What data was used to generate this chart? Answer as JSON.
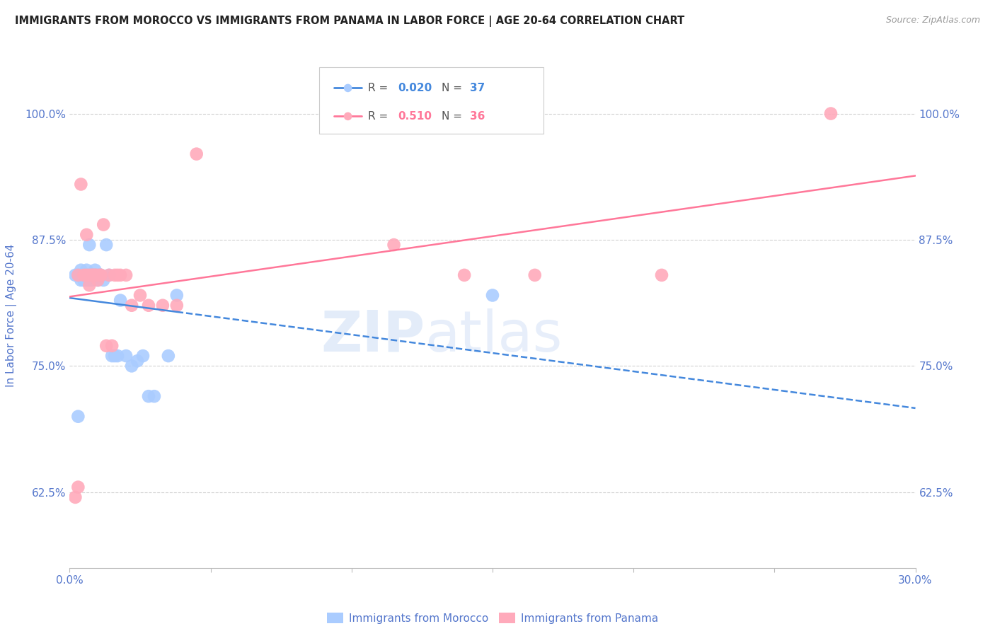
{
  "title": "IMMIGRANTS FROM MOROCCO VS IMMIGRANTS FROM PANAMA IN LABOR FORCE | AGE 20-64 CORRELATION CHART",
  "source": "Source: ZipAtlas.com",
  "ylabel": "In Labor Force | Age 20-64",
  "xlim": [
    0.0,
    0.3
  ],
  "ylim": [
    0.55,
    1.05
  ],
  "xticks": [
    0.0,
    0.05,
    0.1,
    0.15,
    0.2,
    0.25,
    0.3
  ],
  "xticklabels": [
    "0.0%",
    "",
    "",
    "",
    "",
    "",
    "30.0%"
  ],
  "yticks": [
    0.625,
    0.75,
    0.875,
    1.0
  ],
  "yticklabels": [
    "62.5%",
    "75.0%",
    "87.5%",
    "100.0%"
  ],
  "morocco_color": "#aaccff",
  "panama_color": "#ffaabb",
  "morocco_line_color": "#4488dd",
  "panama_line_color": "#ff7799",
  "watermark_color": "#dde8f8",
  "tick_color": "#5577cc",
  "grid_color": "#cccccc",
  "background_color": "#ffffff",
  "morocco_x": [
    0.002,
    0.003,
    0.004,
    0.004,
    0.005,
    0.005,
    0.006,
    0.006,
    0.006,
    0.007,
    0.007,
    0.007,
    0.008,
    0.008,
    0.009,
    0.009,
    0.01,
    0.01,
    0.011,
    0.011,
    0.012,
    0.013,
    0.014,
    0.015,
    0.016,
    0.017,
    0.018,
    0.02,
    0.022,
    0.024,
    0.026,
    0.028,
    0.03,
    0.035,
    0.038,
    0.15,
    0.003
  ],
  "morocco_y": [
    0.84,
    0.84,
    0.835,
    0.845,
    0.835,
    0.84,
    0.835,
    0.84,
    0.845,
    0.87,
    0.835,
    0.84,
    0.84,
    0.835,
    0.84,
    0.845,
    0.84,
    0.835,
    0.84,
    0.84,
    0.835,
    0.87,
    0.84,
    0.76,
    0.76,
    0.76,
    0.815,
    0.76,
    0.75,
    0.755,
    0.76,
    0.72,
    0.72,
    0.76,
    0.82,
    0.82,
    0.7
  ],
  "panama_x": [
    0.002,
    0.003,
    0.003,
    0.004,
    0.005,
    0.006,
    0.006,
    0.007,
    0.007,
    0.008,
    0.008,
    0.009,
    0.009,
    0.01,
    0.01,
    0.011,
    0.011,
    0.012,
    0.013,
    0.014,
    0.015,
    0.016,
    0.017,
    0.018,
    0.02,
    0.022,
    0.025,
    0.028,
    0.033,
    0.038,
    0.045,
    0.115,
    0.14,
    0.165,
    0.21,
    0.27
  ],
  "panama_y": [
    0.62,
    0.63,
    0.84,
    0.93,
    0.84,
    0.84,
    0.88,
    0.84,
    0.83,
    0.84,
    0.84,
    0.84,
    0.84,
    0.84,
    0.835,
    0.84,
    0.84,
    0.89,
    0.77,
    0.84,
    0.77,
    0.84,
    0.84,
    0.84,
    0.84,
    0.81,
    0.82,
    0.81,
    0.81,
    0.81,
    0.96,
    0.87,
    0.84,
    0.84,
    0.84,
    1.0
  ],
  "morocco_line_start_x": 0.0,
  "morocco_line_end_solid": 0.038,
  "morocco_line_end_dashed": 0.3,
  "panama_line_start_x": 0.0,
  "panama_line_end_x": 0.3
}
